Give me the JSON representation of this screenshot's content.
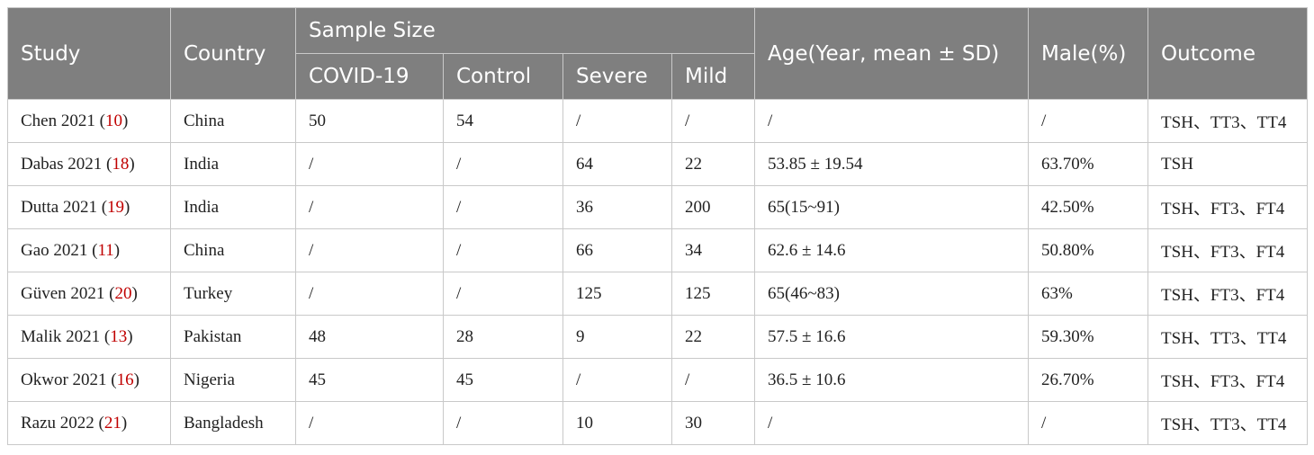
{
  "headers": {
    "study": "Study",
    "country": "Country",
    "sample_size": "Sample Size",
    "covid19": "COVID-19",
    "control": "Control",
    "severe": "Severe",
    "mild": "Mild",
    "age": "Age(Year, mean ± SD)",
    "male": "Male(%)",
    "outcome": "Outcome"
  },
  "rows": [
    {
      "study": "Chen 2021",
      "ref": "10",
      "country": "China",
      "covid19": "50",
      "control": "54",
      "severe": "/",
      "mild": "/",
      "age": "/",
      "male": "/",
      "outcome": "TSH、TT3、TT4"
    },
    {
      "study": "Dabas 2021",
      "ref": "18",
      "country": "India",
      "covid19": "/",
      "control": "/",
      "severe": "64",
      "mild": "22",
      "age": "53.85 ± 19.54",
      "male": "63.70%",
      "outcome": "TSH"
    },
    {
      "study": "Dutta 2021",
      "ref": "19",
      "country": "India",
      "covid19": "/",
      "control": "/",
      "severe": "36",
      "mild": "200",
      "age": "65(15~91)",
      "male": "42.50%",
      "outcome": "TSH、FT3、FT4"
    },
    {
      "study": "Gao 2021",
      "ref": "11",
      "country": "China",
      "covid19": "/",
      "control": "/",
      "severe": "66",
      "mild": "34",
      "age": "62.6 ± 14.6",
      "male": "50.80%",
      "outcome": "TSH、FT3、FT4"
    },
    {
      "study": "Güven 2021",
      "ref": "20",
      "country": "Turkey",
      "covid19": "/",
      "control": "/",
      "severe": "125",
      "mild": "125",
      "age": "65(46~83)",
      "male": "63%",
      "outcome": "TSH、FT3、FT4"
    },
    {
      "study": "Malik 2021",
      "ref": "13",
      "country": "Pakistan",
      "covid19": "48",
      "control": "28",
      "severe": "9",
      "mild": "22",
      "age": "57.5 ± 16.6",
      "male": "59.30%",
      "outcome": "TSH、TT3、TT4"
    },
    {
      "study": "Okwor 2021",
      "ref": "16",
      "country": "Nigeria",
      "covid19": "45",
      "control": "45",
      "severe": "/",
      "mild": "/",
      "age": "36.5 ± 10.6",
      "male": "26.70%",
      "outcome": "TSH、FT3、FT4"
    },
    {
      "study": "Razu 2022",
      "ref": "21",
      "country": "Bangladesh",
      "covid19": "/",
      "control": "/",
      "severe": "10",
      "mild": "30",
      "age": "/",
      "male": "/",
      "outcome": "TSH、TT3、TT4"
    }
  ]
}
